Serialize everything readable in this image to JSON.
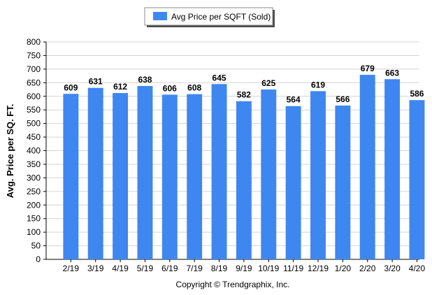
{
  "chart_data": {
    "type": "bar",
    "categories": [
      "2/19",
      "3/19",
      "4/19",
      "5/19",
      "6/19",
      "7/19",
      "8/19",
      "9/19",
      "10/19",
      "11/19",
      "12/19",
      "1/20",
      "2/20",
      "3/20",
      "4/20"
    ],
    "series": [
      {
        "name": "Avg Price per SQFT (Sold)",
        "values": [
          609,
          631,
          612,
          638,
          606,
          608,
          645,
          582,
          625,
          564,
          619,
          566,
          679,
          663,
          586
        ]
      }
    ],
    "title": "",
    "xlabel": "",
    "ylabel": "Avg. Price per SQ. FT.",
    "ylim": [
      0,
      800
    ],
    "yticks": [
      0,
      50,
      100,
      150,
      200,
      250,
      300,
      350,
      400,
      450,
      500,
      550,
      600,
      650,
      700,
      750,
      800
    ],
    "grid": true,
    "legend_position": "top-center",
    "bar_color": "#3f87f0",
    "data_labels": true
  },
  "footer": {
    "copyright": "Copyright © Trendgraphix, Inc."
  }
}
